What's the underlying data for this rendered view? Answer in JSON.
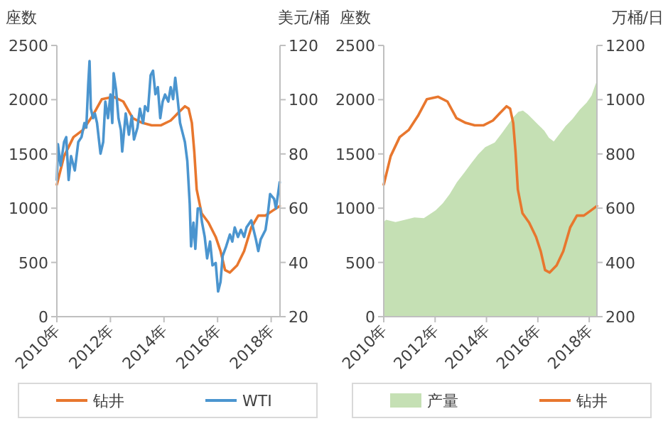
{
  "chart_data": [
    {
      "type": "line",
      "ylabel": "座数",
      "y2label": "美元/桶",
      "legend": "bottom",
      "xlim": [
        2010,
        2018.33
      ],
      "xticks": [
        {
          "value": 2010,
          "label": "2010年"
        },
        {
          "value": 2012,
          "label": "2012年"
        },
        {
          "value": 2014,
          "label": "2014年"
        },
        {
          "value": 2016,
          "label": "2016年"
        },
        {
          "value": 2018,
          "label": "2018年"
        }
      ],
      "ylim": [
        0,
        2500
      ],
      "yticks": [
        0,
        500,
        1000,
        1500,
        2000,
        2500
      ],
      "y2lim": [
        20,
        120
      ],
      "y2ticks": [
        20,
        40,
        60,
        80,
        100,
        120
      ],
      "series": [
        {
          "name": "钻井",
          "color": "#e8772e",
          "axis": "y",
          "x": [
            2010.0,
            2010.27,
            2010.62,
            2010.97,
            2011.33,
            2011.68,
            2012.12,
            2012.48,
            2012.83,
            2013.19,
            2013.54,
            2013.89,
            2014.25,
            2014.51,
            2014.78,
            2014.92,
            2015.04,
            2015.13,
            2015.22,
            2015.4,
            2015.66,
            2015.93,
            2016.11,
            2016.28,
            2016.46,
            2016.73,
            2016.99,
            2017.26,
            2017.52,
            2017.79,
            2018.05,
            2018.32
          ],
          "values": [
            1217,
            1480,
            1655,
            1720,
            1850,
            2005,
            2027,
            1983,
            1830,
            1786,
            1764,
            1764,
            1808,
            1874,
            1939,
            1917,
            1786,
            1523,
            1173,
            954,
            867,
            735,
            604,
            429,
            407,
            473,
            604,
            823,
            932,
            932,
            976,
            1020
          ]
        },
        {
          "name": "WTI",
          "color": "#4b95cf",
          "axis": "y2",
          "x": [
            2010.0,
            2010.04,
            2010.14,
            2010.27,
            2010.35,
            2010.44,
            2010.53,
            2010.67,
            2010.8,
            2010.92,
            2011.03,
            2011.1,
            2011.17,
            2011.22,
            2011.27,
            2011.35,
            2011.42,
            2011.5,
            2011.63,
            2011.73,
            2011.81,
            2011.91,
            2012.0,
            2012.07,
            2012.12,
            2012.21,
            2012.3,
            2012.39,
            2012.44,
            2012.57,
            2012.69,
            2012.8,
            2012.88,
            2013.01,
            2013.1,
            2013.22,
            2013.29,
            2013.4,
            2013.5,
            2013.59,
            2013.68,
            2013.77,
            2013.86,
            2013.95,
            2014.04,
            2014.16,
            2014.25,
            2014.34,
            2014.42,
            2014.51,
            2014.6,
            2014.69,
            2014.78,
            2014.87,
            2014.96,
            2015.01,
            2015.1,
            2015.17,
            2015.26,
            2015.35,
            2015.42,
            2015.52,
            2015.61,
            2015.72,
            2015.81,
            2015.93,
            2016.02,
            2016.11,
            2016.19,
            2016.32,
            2016.46,
            2016.55,
            2016.64,
            2016.76,
            2016.87,
            2016.99,
            2017.08,
            2017.26,
            2017.43,
            2017.52,
            2017.61,
            2017.79,
            2017.88,
            2017.96,
            2018.11,
            2018.18,
            2018.32
          ],
          "values": [
            70.4,
            83.6,
            75.7,
            84.4,
            86.2,
            70.4,
            79.2,
            73.9,
            84.4,
            86.2,
            91.4,
            89.7,
            105.4,
            114.2,
            96.7,
            93.2,
            94.9,
            91.4,
            80.1,
            84.4,
            99.3,
            93.2,
            101.9,
            91.4,
            109.8,
            103.7,
            93.2,
            88.8,
            80.9,
            94.9,
            87.1,
            94.0,
            85.3,
            89.7,
            96.7,
            91.4,
            97.6,
            95.8,
            109.0,
            110.7,
            102.0,
            104.6,
            93.2,
            99.3,
            101.9,
            99.3,
            104.6,
            100.2,
            108.1,
            100.2,
            91.4,
            87.9,
            84.4,
            77.4,
            61.7,
            45.9,
            54.7,
            45.0,
            59.9,
            59.9,
            54.7,
            49.4,
            41.5,
            47.7,
            38.9,
            39.8,
            29.3,
            32.8,
            42.4,
            45.9,
            50.3,
            47.7,
            52.9,
            49.4,
            52.0,
            49.4,
            52.9,
            55.5,
            48.5,
            44.2,
            48.5,
            52.0,
            58.2,
            65.2,
            63.4,
            59.9,
            69.6
          ]
        }
      ]
    },
    {
      "type": "line",
      "ylabel": "座数",
      "y2label": "万桶/日",
      "legend": "bottom",
      "xlim": [
        2010,
        2018.3
      ],
      "xticks": [
        {
          "value": 2010,
          "label": "2010年"
        },
        {
          "value": 2012,
          "label": "2012年"
        },
        {
          "value": 2014,
          "label": "2014年"
        },
        {
          "value": 2016,
          "label": "2016年"
        },
        {
          "value": 2018,
          "label": "2018年"
        }
      ],
      "ylim": [
        0,
        2500
      ],
      "yticks": [
        0,
        500,
        1000,
        1500,
        2000,
        2500
      ],
      "y2lim": [
        200,
        1200
      ],
      "y2ticks": [
        200,
        400,
        600,
        800,
        1000,
        1200
      ],
      "series": [
        {
          "name": "产量",
          "type": "area",
          "color": "#c5e0b4",
          "axis": "y2",
          "x": [
            2010.0,
            2010.09,
            2010.46,
            2010.83,
            2011.19,
            2011.56,
            2011.75,
            2012.02,
            2012.3,
            2012.57,
            2012.85,
            2013.13,
            2013.4,
            2013.68,
            2013.95,
            2014.32,
            2014.6,
            2014.87,
            2015.06,
            2015.24,
            2015.42,
            2015.61,
            2015.79,
            2016.01,
            2016.25,
            2016.43,
            2016.62,
            2016.8,
            2017.08,
            2017.35,
            2017.63,
            2017.9,
            2018.09,
            2018.22,
            2018.29
          ],
          "values": [
            549,
            557,
            549,
            557,
            566,
            563,
            575,
            592,
            618,
            652,
            696,
            730,
            765,
            799,
            825,
            842,
            877,
            912,
            937,
            955,
            960,
            946,
            929,
            908,
            886,
            860,
            846,
            868,
            903,
            929,
            963,
            989,
            1015,
            1050,
            1067
          ]
        },
        {
          "name": "钻井",
          "color": "#e8772e",
          "axis": "y",
          "x": [
            2010.0,
            2010.27,
            2010.62,
            2010.97,
            2011.33,
            2011.68,
            2012.12,
            2012.48,
            2012.83,
            2013.19,
            2013.54,
            2013.89,
            2014.25,
            2014.51,
            2014.78,
            2014.92,
            2015.04,
            2015.13,
            2015.22,
            2015.4,
            2015.66,
            2015.93,
            2016.11,
            2016.28,
            2016.46,
            2016.73,
            2016.99,
            2017.26,
            2017.52,
            2017.79,
            2018.05,
            2018.3
          ],
          "values": [
            1217,
            1480,
            1655,
            1720,
            1850,
            2005,
            2027,
            1983,
            1830,
            1786,
            1764,
            1764,
            1808,
            1874,
            1939,
            1917,
            1786,
            1523,
            1173,
            954,
            867,
            735,
            604,
            429,
            407,
            473,
            604,
            823,
            932,
            932,
            976,
            1020
          ]
        }
      ]
    }
  ]
}
